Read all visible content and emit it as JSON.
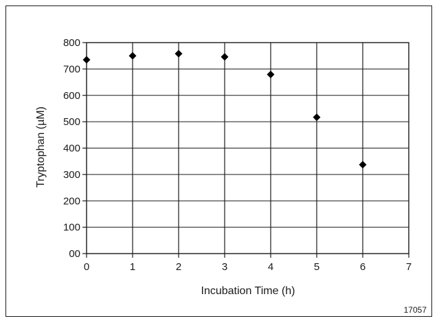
{
  "chart_data": {
    "type": "scatter",
    "xlabel": "Incubation Time (h)",
    "ylabel": "Tryptophan (µM)",
    "xlim": [
      0,
      7
    ],
    "ylim": [
      0,
      800
    ],
    "x_ticks": [
      {
        "value": 0,
        "label": "0"
      },
      {
        "value": 1,
        "label": "1"
      },
      {
        "value": 2,
        "label": "2"
      },
      {
        "value": 3,
        "label": "3"
      },
      {
        "value": 4,
        "label": "4"
      },
      {
        "value": 5,
        "label": "5"
      },
      {
        "value": 6,
        "label": "6"
      },
      {
        "value": 7,
        "label": "7"
      }
    ],
    "y_ticks": [
      {
        "value": 0,
        "label": "00"
      },
      {
        "value": 100,
        "label": "100"
      },
      {
        "value": 200,
        "label": "200"
      },
      {
        "value": 300,
        "label": "300"
      },
      {
        "value": 400,
        "label": "400"
      },
      {
        "value": 500,
        "label": "500"
      },
      {
        "value": 600,
        "label": "600"
      },
      {
        "value": 700,
        "label": "700"
      },
      {
        "value": 800,
        "label": "800"
      }
    ],
    "grid": "horizontal and vertical at x = 0..6",
    "marker": "diamond",
    "series": [
      {
        "points": [
          {
            "x": 0,
            "y": 735
          },
          {
            "x": 1,
            "y": 750
          },
          {
            "x": 2,
            "y": 758
          },
          {
            "x": 3,
            "y": 746
          },
          {
            "x": 4,
            "y": 679
          },
          {
            "x": 5,
            "y": 517
          },
          {
            "x": 6,
            "y": 337
          }
        ]
      }
    ],
    "figure_id": "17057"
  },
  "colors": {
    "axis": "#1a1a1a",
    "grid": "#1a1a1a",
    "marker": "#000000"
  }
}
